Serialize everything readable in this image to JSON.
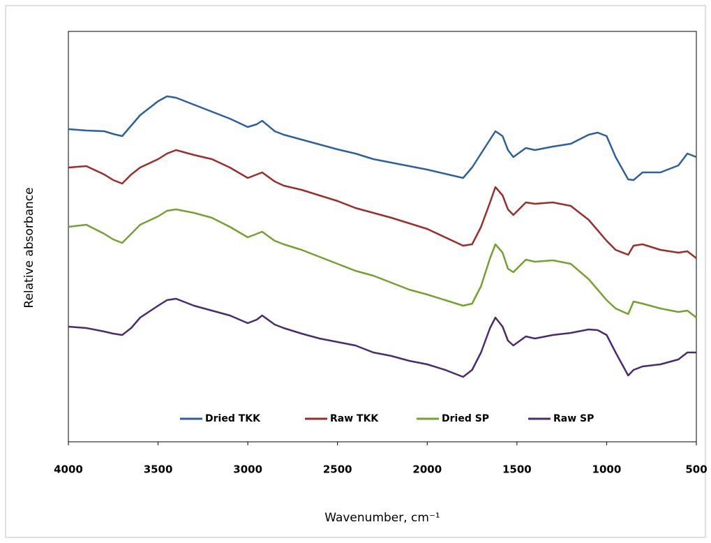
{
  "chart_data": {
    "type": "line",
    "x_label": "Wavenumber, cm⁻¹",
    "y_label": "Relative absorbance",
    "x": [
      4000,
      3900,
      3800,
      3750,
      3700,
      3650,
      3600,
      3500,
      3450,
      3400,
      3300,
      3200,
      3100,
      3000,
      2950,
      2920,
      2850,
      2800,
      2700,
      2600,
      2500,
      2400,
      2300,
      2200,
      2100,
      2000,
      1900,
      1800,
      1750,
      1700,
      1650,
      1620,
      1580,
      1550,
      1520,
      1450,
      1400,
      1300,
      1200,
      1100,
      1050,
      1000,
      950,
      880,
      850,
      800,
      700,
      600,
      550,
      500
    ],
    "series": [
      {
        "name": "Dried TKK",
        "color": "#2e5f9e",
        "values": [
          448,
          446,
          445,
          441,
          438,
          453,
          468,
          488,
          495,
          493,
          483,
          473,
          463,
          451,
          455,
          460,
          445,
          440,
          433,
          426,
          419,
          413,
          405,
          400,
          395,
          390,
          384,
          378,
          393,
          413,
          433,
          445,
          438,
          418,
          408,
          421,
          418,
          423,
          427,
          440,
          443,
          438,
          408,
          376,
          375,
          386,
          386,
          396,
          413,
          408
        ]
      },
      {
        "name": "Raw TKK",
        "color": "#9b2d2a",
        "values": [
          393,
          395,
          383,
          375,
          370,
          383,
          393,
          405,
          413,
          418,
          411,
          405,
          393,
          378,
          383,
          386,
          373,
          367,
          361,
          353,
          345,
          335,
          328,
          321,
          313,
          305,
          293,
          281,
          283,
          308,
          343,
          365,
          353,
          333,
          325,
          343,
          341,
          343,
          338,
          318,
          303,
          288,
          275,
          268,
          281,
          283,
          275,
          271,
          273,
          263
        ]
      },
      {
        "name": "Dried SP",
        "color": "#76a02f",
        "values": [
          308,
          311,
          298,
          290,
          285,
          298,
          311,
          323,
          331,
          333,
          328,
          321,
          308,
          293,
          298,
          301,
          288,
          283,
          275,
          265,
          255,
          245,
          238,
          228,
          218,
          211,
          203,
          195,
          198,
          223,
          263,
          283,
          271,
          248,
          243,
          261,
          258,
          260,
          255,
          233,
          218,
          203,
          191,
          183,
          201,
          198,
          191,
          186,
          188,
          178
        ]
      },
      {
        "name": "Raw SP",
        "color": "#4b2a72",
        "values": [
          165,
          163,
          158,
          155,
          153,
          163,
          178,
          195,
          203,
          205,
          195,
          188,
          181,
          170,
          175,
          181,
          168,
          163,
          155,
          148,
          143,
          138,
          128,
          123,
          116,
          111,
          103,
          93,
          103,
          128,
          163,
          178,
          165,
          145,
          138,
          151,
          148,
          153,
          156,
          161,
          160,
          153,
          128,
          95,
          103,
          108,
          111,
          118,
          128,
          128
        ]
      }
    ],
    "xlim": [
      4000,
      500
    ],
    "xticks": [
      4000,
      3500,
      3000,
      2500,
      2000,
      1500,
      1000,
      500
    ],
    "ylim": [
      0,
      588
    ],
    "grid": false,
    "legend": "bottom"
  }
}
